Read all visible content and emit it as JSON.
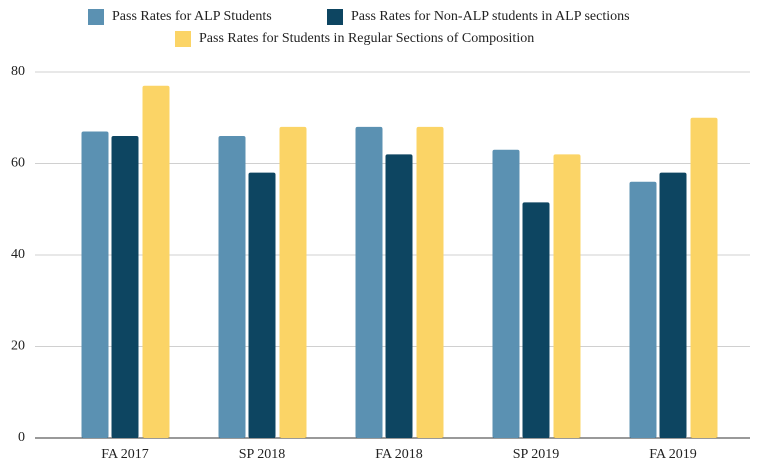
{
  "chart_data": {
    "type": "bar",
    "categories": [
      "FA 2017",
      "SP 2018",
      "FA 2018",
      "SP 2019",
      "FA 2019"
    ],
    "series": [
      {
        "name": "Pass Rates for ALP Students",
        "color": "#5b91b2",
        "values": [
          67,
          66,
          68,
          63,
          56
        ]
      },
      {
        "name": "Pass Rates for Non-ALP students in ALP sections",
        "color": "#0d4561",
        "values": [
          66,
          58,
          62,
          51.5,
          58
        ]
      },
      {
        "name": "Pass Rates for Students in Regular Sections of Composition",
        "color": "#fbd466",
        "values": [
          77,
          68,
          68,
          62,
          70
        ]
      }
    ],
    "ylim": [
      0,
      80
    ],
    "yticks": [
      0,
      20,
      40,
      60,
      80
    ],
    "grid": true,
    "legend": "top"
  }
}
